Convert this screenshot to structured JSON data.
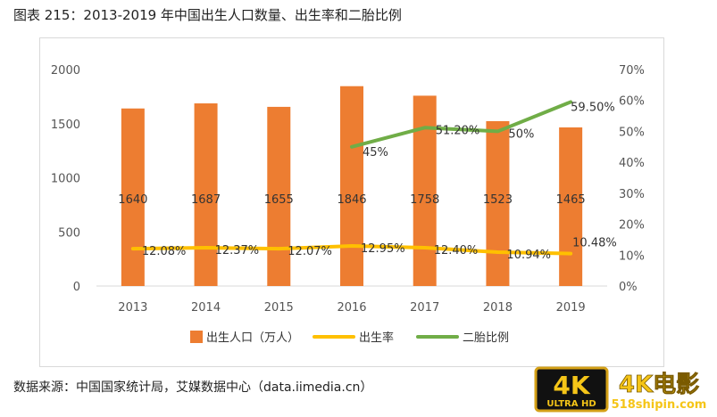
{
  "title": "图表 215：2013-2019 年中国出生人口数量、出生率和二胎比例",
  "source": "数据来源：中国国家统计局，艾媒数据中心（data.iimedia.cn）",
  "watermark": {
    "badge_top": "4K",
    "badge_bottom": "ULTRA HD",
    "brand": "4K电影",
    "site": "518shipin.com"
  },
  "chart_data": {
    "type": "bar",
    "categories": [
      "2013",
      "2014",
      "2015",
      "2016",
      "2017",
      "2018",
      "2019"
    ],
    "y_left": {
      "min": 0,
      "max": 2000,
      "ticks": [
        0,
        500,
        1000,
        1500,
        2000
      ]
    },
    "y_right": {
      "min": 0,
      "max": 70,
      "ticks": [
        "0%",
        "10%",
        "20%",
        "30%",
        "40%",
        "50%",
        "60%",
        "70%"
      ]
    },
    "grid": false,
    "legend_position": "bottom",
    "series": [
      {
        "name": "出生人口（万人）",
        "type": "bar",
        "axis": "left",
        "color": "#ed7d31",
        "values": [
          1640,
          1687,
          1655,
          1846,
          1758,
          1523,
          1465
        ],
        "labels": [
          "1640",
          "1687",
          "1655",
          "1846",
          "1758",
          "1523",
          "1465"
        ]
      },
      {
        "name": "出生率",
        "type": "line",
        "axis": "right",
        "color": "#ffc000",
        "values": [
          12.08,
          12.37,
          12.07,
          12.95,
          12.4,
          10.94,
          10.48
        ],
        "labels": [
          "12.08%",
          "12.37%",
          "12.07%",
          "12.95%",
          "12.40%",
          "10.94%",
          "10.48%"
        ]
      },
      {
        "name": "二胎比例",
        "type": "line",
        "axis": "right",
        "color": "#70ad47",
        "values": [
          null,
          null,
          null,
          45,
          51.2,
          50,
          59.5
        ],
        "labels": [
          "",
          "",
          "",
          "45%",
          "51.20%",
          "50%",
          "59.50%"
        ]
      }
    ]
  }
}
